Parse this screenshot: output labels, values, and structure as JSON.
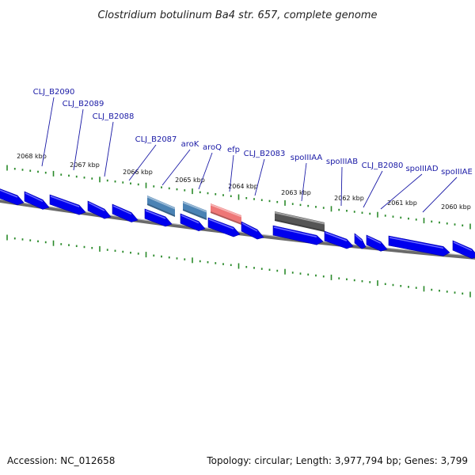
{
  "title": "Clostridium botulinum Ba4 str. 657, complete genome",
  "footer": {
    "accession": "Accession: NC_012658",
    "summary": "Topology: circular; Length: 3,977,794 bp; Genes: 3,799"
  },
  "colors": {
    "cds": "#0000ee",
    "trna": "#4a82b4",
    "rrna": "#ee7777",
    "misc": "#555555",
    "backbone": "#808080",
    "ticks": "#2a8a2a",
    "label": "#1a1aa6"
  },
  "kbp_labels": [
    "2068 kbp",
    "2067 kbp",
    "2066 kbp",
    "2065 kbp",
    "2064 kbp",
    "2063 kbp",
    "2062 kbp",
    "2061 kbp",
    "2060 kbp"
  ],
  "gene_labels": [
    "CLJ_B2090",
    "CLJ_B2089",
    "CLJ_B2088",
    "CLJ_B2087",
    "aroK",
    "aroQ",
    "efp",
    "CLJ_B2083",
    "spoIIIAA",
    "spoIIIAB",
    "CLJ_B2080",
    "spoIIIAD",
    "spoIIIAE"
  ],
  "features": [
    {
      "type": "cds"
    },
    {
      "type": "cds"
    },
    {
      "type": "cds"
    },
    {
      "type": "cds"
    },
    {
      "type": "cds"
    },
    {
      "type": "trna"
    },
    {
      "type": "trna"
    },
    {
      "type": "rrna"
    },
    {
      "type": "cds"
    },
    {
      "type": "cds"
    },
    {
      "type": "cds"
    },
    {
      "type": "cds"
    },
    {
      "type": "misc"
    },
    {
      "type": "cds"
    },
    {
      "type": "cds"
    },
    {
      "type": "cds"
    },
    {
      "type": "cds"
    },
    {
      "type": "cds"
    },
    {
      "type": "cds"
    },
    {
      "type": "cds"
    }
  ]
}
